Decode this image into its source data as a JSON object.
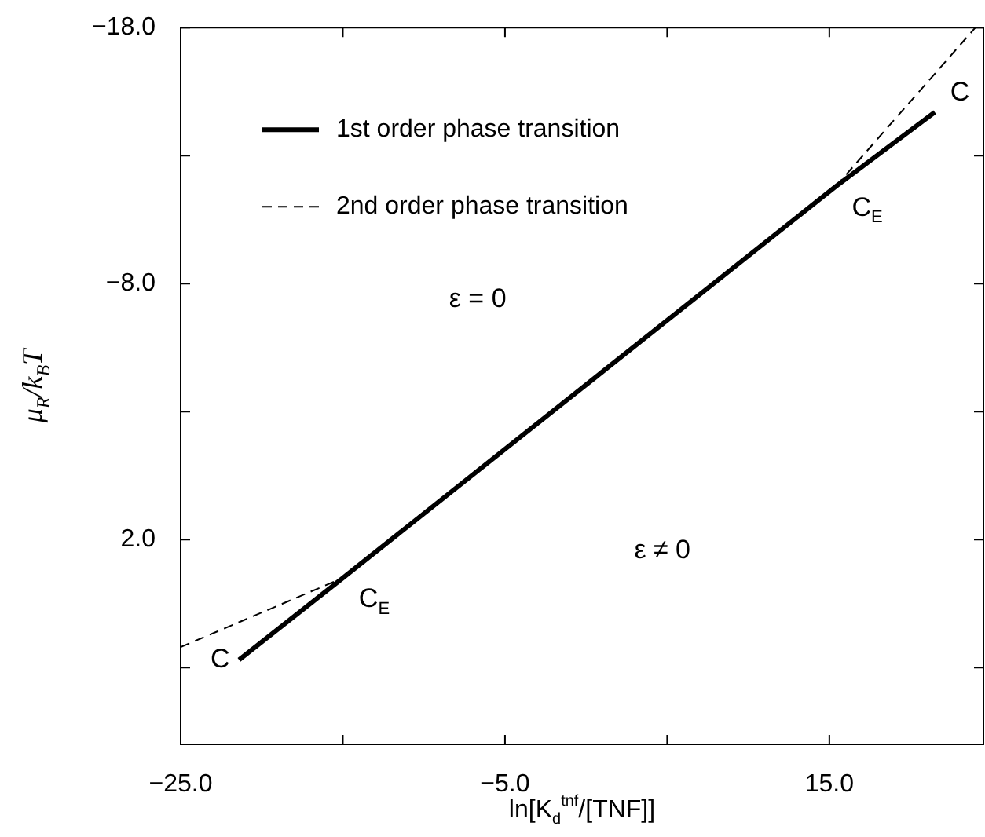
{
  "chart_data": {
    "type": "line",
    "xlabel": "ln[K$_{d}$$^{tnf}$/[TNF]]",
    "ylabel": "μ$_{R}$/k$_{B}$T",
    "xlim": [
      -25,
      24.5
    ],
    "ylim": [
      10,
      -18
    ],
    "xticks": [
      {
        "value": -25,
        "label": "−25.0"
      },
      {
        "value": -15,
        "label": null
      },
      {
        "value": -5,
        "label": "−5.0"
      },
      {
        "value": 5,
        "label": null
      },
      {
        "value": 15,
        "label": "15.0"
      }
    ],
    "yticks": [
      {
        "value": -18,
        "label": "−18.0"
      },
      {
        "value": -13,
        "label": null
      },
      {
        "value": -8,
        "label": "−8.0"
      },
      {
        "value": -3,
        "label": null
      },
      {
        "value": 2,
        "label": "2.0"
      },
      {
        "value": 7,
        "label": null
      }
    ],
    "series": [
      {
        "name": "1st order phase transition",
        "color": "#000000",
        "line_style": "solid",
        "x": [
          -21.4,
          -15,
          15.4,
          21.5
        ],
        "values": [
          6.7,
          3.5,
          -11.8,
          -14.7
        ]
      },
      {
        "name": "2nd order phase transition",
        "color": "#000000",
        "line_style": "dashed",
        "x": [
          -25,
          -15,
          0,
          15.4,
          24
        ],
        "values": [
          6.2,
          3.5,
          null,
          -11.8,
          -18
        ]
      }
    ],
    "annotations": [
      {
        "text": "C",
        "x": -21.4,
        "y": 6.7
      },
      {
        "text": "C$_{E}$",
        "x": -15,
        "y": 3.5
      },
      {
        "text": "C$_{E}$",
        "x": 15.4,
        "y": -11.8
      },
      {
        "text": "C",
        "x": 21.5,
        "y": -14.7
      },
      "ε = 0",
      "ε ≠ 0"
    ],
    "grid": false,
    "legend": "top left",
    "marker": "none"
  }
}
